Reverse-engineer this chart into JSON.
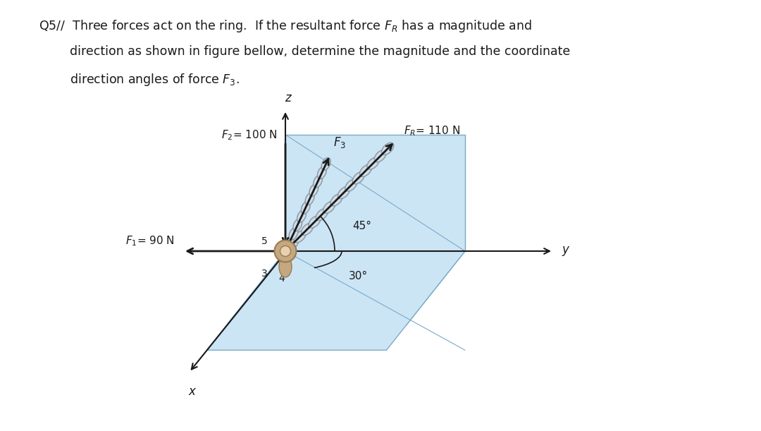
{
  "bg_color": "#ffffff",
  "panel_face_color": "#cce5f5",
  "panel_edge_color": "#7aaac8",
  "font_color": "#1a1a1a",
  "arrow_color": "#1a1a1a",
  "chain_color": "#8a9aa8",
  "chain_fill": "#d0dde5",
  "labels": {
    "F1": "$F_1$= 90 N",
    "F2": "$F_2$= 100 N",
    "F3": "$F_3$",
    "FR": "$F_R$= 110 N",
    "x": "$x$",
    "y": "$y$",
    "z": "$z$",
    "angle1": "45°",
    "angle2": "30°",
    "n5": "5",
    "n3": "3",
    "n4": "4"
  },
  "header": [
    "Q5//  Three forces act on the ring.  If the resultant force $F_R$ has a magnitude and",
    "        direction as shown in figure bellow, determine the magnitude and the coordinate",
    "        direction angles of force $F_3$."
  ]
}
